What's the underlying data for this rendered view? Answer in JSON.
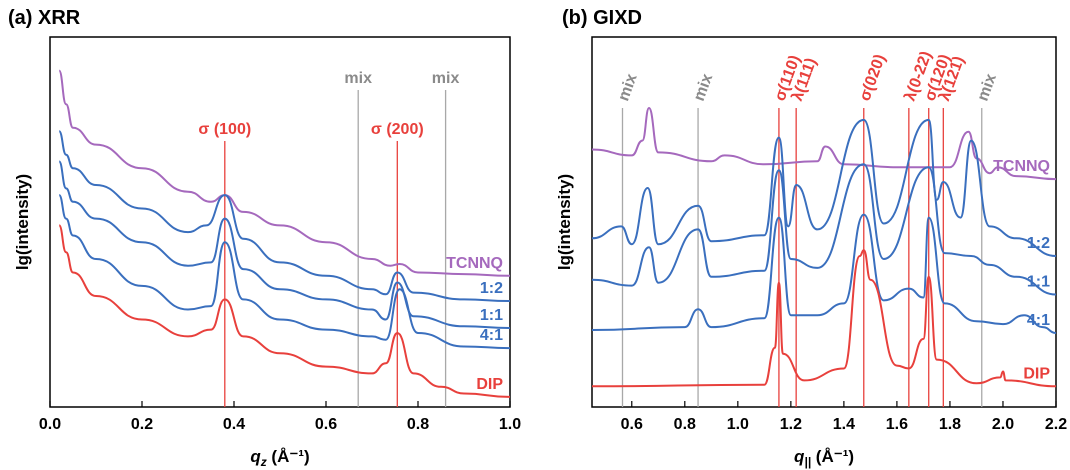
{
  "chart_data": [
    {
      "type": "line",
      "title": "(a) XRR",
      "xlabel_main": "q",
      "xlabel_sub": "z",
      "xlabel_unit": " (Å⁻¹)",
      "ylabel": "lg(intensity)",
      "xlim": [
        0.0,
        1.0
      ],
      "xticks": [
        "0.0",
        "0.2",
        "0.4",
        "0.6",
        "0.8",
        "1.0"
      ],
      "xtick_values": [
        0.0,
        0.2,
        0.4,
        0.6,
        0.8,
        1.0
      ],
      "y_scale": "log (arbitrary, curves vertically offset)",
      "grid": false,
      "reference_lines": [
        {
          "x": 0.38,
          "label": "σ (100)",
          "color": "#e8403c"
        },
        {
          "x": 0.755,
          "label": "σ (200)",
          "color": "#e8403c"
        },
        {
          "x": 0.67,
          "label": "mix",
          "color": "#a8a8a8"
        },
        {
          "x": 0.86,
          "label": "mix",
          "color": "#a8a8a8"
        }
      ],
      "series": [
        {
          "name": "TCNNQ",
          "color": "#a569bd",
          "x": [
            0.02,
            0.035,
            0.05,
            0.1,
            0.2,
            0.3,
            0.35,
            0.38,
            0.42,
            0.5,
            0.6,
            0.7,
            0.74,
            0.76,
            0.8,
            0.9,
            1.0
          ],
          "y": [
            10.0,
            9.0,
            8.3,
            7.8,
            7.1,
            6.4,
            6.1,
            6.3,
            5.8,
            5.4,
            4.9,
            4.4,
            4.2,
            4.25,
            4.0,
            3.95,
            3.9
          ]
        },
        {
          "name": "1:2",
          "color": "#3a6fbe",
          "x": [
            0.02,
            0.035,
            0.05,
            0.1,
            0.2,
            0.3,
            0.34,
            0.38,
            0.42,
            0.5,
            0.6,
            0.7,
            0.73,
            0.755,
            0.79,
            0.9,
            1.0
          ],
          "y": [
            8.2,
            7.5,
            7.1,
            6.6,
            5.9,
            5.2,
            5.4,
            6.3,
            5.0,
            4.3,
            3.9,
            3.5,
            3.35,
            4.0,
            3.4,
            3.2,
            3.15
          ]
        },
        {
          "name": "1:1",
          "color": "#3a6fbe",
          "x": [
            0.02,
            0.035,
            0.05,
            0.1,
            0.2,
            0.3,
            0.35,
            0.38,
            0.42,
            0.5,
            0.6,
            0.7,
            0.73,
            0.755,
            0.79,
            0.9,
            1.0
          ],
          "y": [
            7.3,
            6.5,
            6.1,
            5.6,
            4.9,
            4.2,
            4.3,
            5.6,
            4.1,
            3.5,
            3.2,
            2.9,
            2.6,
            3.7,
            2.7,
            2.4,
            2.35
          ]
        },
        {
          "name": "4:1",
          "color": "#3a6fbe",
          "x": [
            0.02,
            0.035,
            0.05,
            0.1,
            0.2,
            0.3,
            0.35,
            0.38,
            0.42,
            0.5,
            0.6,
            0.7,
            0.73,
            0.76,
            0.8,
            0.9,
            1.0
          ],
          "y": [
            6.3,
            5.6,
            5.1,
            4.4,
            3.6,
            2.9,
            3.0,
            4.9,
            3.2,
            2.6,
            2.3,
            2.1,
            2.0,
            3.5,
            2.2,
            1.8,
            1.75
          ]
        },
        {
          "name": "DIP",
          "color": "#e8403c",
          "x": [
            0.02,
            0.035,
            0.05,
            0.1,
            0.2,
            0.3,
            0.35,
            0.38,
            0.42,
            0.5,
            0.6,
            0.7,
            0.73,
            0.755,
            0.79,
            0.85,
            0.9,
            1.0
          ],
          "y": [
            5.4,
            4.6,
            4.0,
            3.3,
            2.6,
            2.1,
            2.3,
            3.2,
            2.1,
            1.6,
            1.2,
            1.0,
            1.3,
            2.2,
            1.0,
            0.6,
            0.4,
            0.3
          ]
        }
      ]
    },
    {
      "type": "line",
      "title": "(b) GIXD",
      "xlabel_main": "q",
      "xlabel_sub": "||",
      "xlabel_unit": " (Å⁻¹)",
      "ylabel": "lg(intensity)",
      "xlim": [
        0.45,
        2.2
      ],
      "xticks": [
        "0.6",
        "0.8",
        "1.0",
        "1.2",
        "1.4",
        "1.6",
        "1.8",
        "2.0",
        "2.2"
      ],
      "xtick_values": [
        0.6,
        0.8,
        1.0,
        1.2,
        1.4,
        1.6,
        1.8,
        2.0,
        2.2
      ],
      "y_scale": "log (arbitrary, curves vertically offset)",
      "grid": false,
      "reference_lines": [
        {
          "x": 0.565,
          "label": "mix",
          "color": "#a8a8a8"
        },
        {
          "x": 0.85,
          "label": "mix",
          "color": "#a8a8a8"
        },
        {
          "x": 1.155,
          "label": "σ(110)",
          "color": "#e8403c"
        },
        {
          "x": 1.22,
          "label": "λ(111)",
          "color": "#e8403c"
        },
        {
          "x": 1.475,
          "label": "σ(020)",
          "color": "#e8403c"
        },
        {
          "x": 1.645,
          "label": "λ(0-22)",
          "color": "#e8403c"
        },
        {
          "x": 1.72,
          "label": "σ(120)",
          "color": "#e8403c"
        },
        {
          "x": 1.775,
          "label": "λ(121)",
          "color": "#e8403c"
        },
        {
          "x": 1.92,
          "label": "mix",
          "color": "#a8a8a8"
        }
      ],
      "series": [
        {
          "name": "TCNNQ",
          "color": "#a569bd",
          "x": [
            0.45,
            0.6,
            0.64,
            0.665,
            0.7,
            0.9,
            0.95,
            1.1,
            1.3,
            1.33,
            1.4,
            1.6,
            1.8,
            1.87,
            1.9,
            1.95,
            1.98,
            2.05,
            2.2
          ],
          "y": [
            8.2,
            8.0,
            8.5,
            9.6,
            8.1,
            7.8,
            8.0,
            7.7,
            7.8,
            8.3,
            7.7,
            7.6,
            7.6,
            8.8,
            7.9,
            7.4,
            7.6,
            7.3,
            7.2
          ]
        },
        {
          "name": "1:2",
          "color": "#3a6fbe",
          "x": [
            0.45,
            0.56,
            0.6,
            0.66,
            0.7,
            0.85,
            0.9,
            1.1,
            1.155,
            1.19,
            1.22,
            1.3,
            1.475,
            1.55,
            1.72,
            1.75,
            1.775,
            1.84,
            1.88,
            1.95,
            2.05,
            2.2
          ],
          "y": [
            5.2,
            5.6,
            5.0,
            6.9,
            5.0,
            6.3,
            5.1,
            5.3,
            8.6,
            5.6,
            7.0,
            5.5,
            9.2,
            5.7,
            9.2,
            6.5,
            7.1,
            5.9,
            8.5,
            5.6,
            5.2,
            4.6
          ]
        },
        {
          "name": "1:1",
          "color": "#3a6fbe",
          "x": [
            0.45,
            0.6,
            0.665,
            0.7,
            0.85,
            0.9,
            1.1,
            1.155,
            1.2,
            1.3,
            1.475,
            1.55,
            1.72,
            1.78,
            1.88,
            1.95,
            2.05,
            2.2
          ],
          "y": [
            3.8,
            3.6,
            4.9,
            3.7,
            5.5,
            3.9,
            4.1,
            7.5,
            4.5,
            4.2,
            7.7,
            4.5,
            7.6,
            4.7,
            4.6,
            4.3,
            3.9,
            3.3
          ]
        },
        {
          "name": "4:1",
          "color": "#3a6fbe",
          "x": [
            0.45,
            0.8,
            0.85,
            0.9,
            1.1,
            1.155,
            1.2,
            1.3,
            1.4,
            1.475,
            1.55,
            1.645,
            1.7,
            1.72,
            1.78,
            1.9,
            2.0,
            2.08,
            2.15,
            2.2
          ],
          "y": [
            2.1,
            2.2,
            2.8,
            2.2,
            2.5,
            5.9,
            2.6,
            2.6,
            3.0,
            6.0,
            3.1,
            3.5,
            3.2,
            5.9,
            3.0,
            2.4,
            2.3,
            2.6,
            2.2,
            2.0
          ]
        },
        {
          "name": "DIP",
          "color": "#e8403c",
          "x": [
            0.45,
            1.1,
            1.14,
            1.155,
            1.17,
            1.25,
            1.4,
            1.46,
            1.475,
            1.5,
            1.6,
            1.645,
            1.7,
            1.72,
            1.75,
            1.9,
            1.99,
            2.0,
            2.01,
            2.2
          ],
          "y": [
            0.2,
            0.25,
            1.5,
            3.7,
            1.3,
            0.4,
            0.8,
            4.6,
            4.8,
            3.8,
            0.9,
            0.8,
            1.8,
            3.9,
            1.1,
            0.3,
            0.5,
            0.7,
            0.4,
            0.2
          ]
        }
      ]
    }
  ]
}
